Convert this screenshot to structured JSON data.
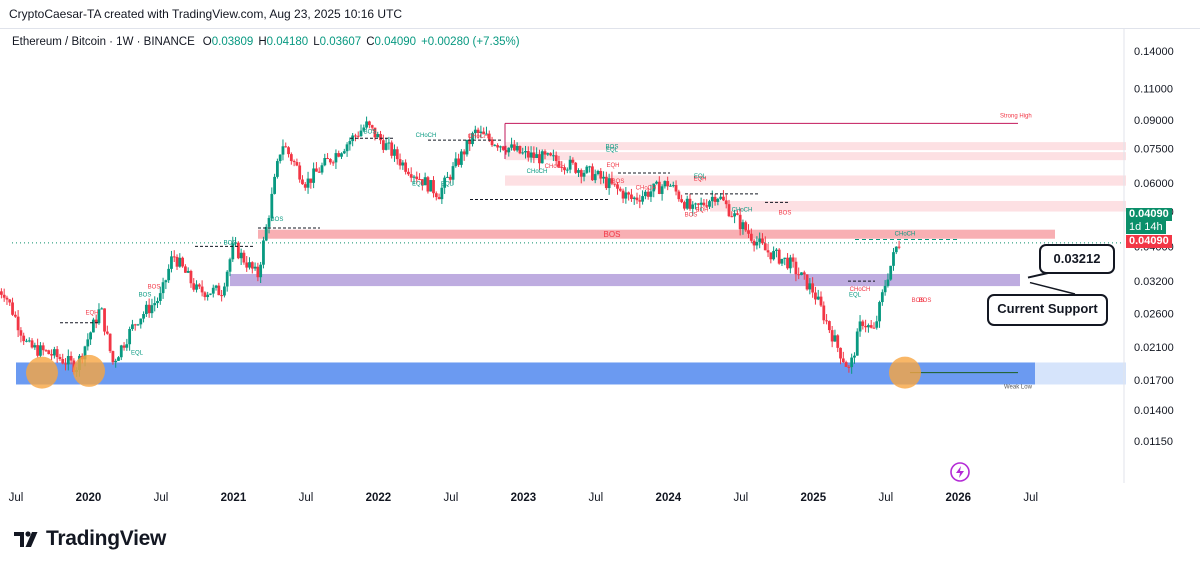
{
  "header": {
    "attribution": "CryptoCaesar-TA created with TradingView.com, Aug 23, 2025 10:16 UTC"
  },
  "legend": {
    "symbol": "Ethereum / Bitcoin · 1W · BINANCE",
    "o_label": "O",
    "o_value": "0.03809",
    "h_label": "H",
    "h_value": "0.04180",
    "l_label": "L",
    "l_value": "0.03607",
    "c_label": "C",
    "c_value": "0.04090",
    "change": "+0.00280 (+7.35%)"
  },
  "price_axis": {
    "scale": "log",
    "ticks": [
      "0.14000",
      "0.11000",
      "0.09000",
      "0.07500",
      "0.06000",
      "0.05000",
      "0.04000",
      "0.03200",
      "0.02600",
      "0.02100",
      "0.01700",
      "0.01400",
      "0.01150"
    ],
    "last_price": "0.04090",
    "countdown": "1d 14h",
    "last_price_2": "0.04090"
  },
  "time_axis": {
    "ticks": [
      "Jul",
      "2020",
      "Jul",
      "2021",
      "Jul",
      "2022",
      "Jul",
      "2023",
      "Jul",
      "2024",
      "Jul",
      "2025",
      "Jul",
      "2026",
      "Jul"
    ]
  },
  "annotations": {
    "callout_price": "0.03212",
    "callout_support": "Current Support",
    "strong_high": "Strong High",
    "weak_low": "Weak Low",
    "bos_center": "BOS",
    "choch_recent": "CHoCH",
    "labels": [
      {
        "text": "BOS",
        "color": "#089981"
      },
      {
        "text": "BOS",
        "color": "#089981"
      },
      {
        "text": "BOS",
        "color": "#089981"
      },
      {
        "text": "CHoCH",
        "color": "#089981"
      },
      {
        "text": "CHoCH",
        "color": "#f23645"
      },
      {
        "text": "EQL",
        "color": "#089981"
      },
      {
        "text": "EQL",
        "color": "#089981"
      },
      {
        "text": "EQH",
        "color": "#f23645"
      },
      {
        "text": "BOS",
        "color": "#089981"
      },
      {
        "text": "BOS",
        "color": "#f23645"
      },
      {
        "text": "EQL",
        "color": "#089981"
      },
      {
        "text": "BOS",
        "color": "#089981"
      },
      {
        "text": "CHoCH",
        "color": "#f23645"
      },
      {
        "text": "CHoCH",
        "color": "#089981"
      },
      {
        "text": "BOS",
        "color": "#f23645"
      },
      {
        "text": "EQL",
        "color": "#089981"
      },
      {
        "text": "CHoCH",
        "color": "#f23645"
      },
      {
        "text": "EQH",
        "color": "#f23645"
      },
      {
        "text": "BOS",
        "color": "#f23645"
      },
      {
        "text": "EQH",
        "color": "#f23645"
      },
      {
        "text": "EQL",
        "color": "#089981"
      },
      {
        "text": "CHoCH",
        "color": "#089981"
      },
      {
        "text": "BOS",
        "color": "#f23645"
      },
      {
        "text": "EQL",
        "color": "#089981"
      },
      {
        "text": "CHoCH",
        "color": "#f23645"
      },
      {
        "text": "BOS",
        "color": "#f23645"
      },
      {
        "text": "BOS",
        "color": "#f23645"
      },
      {
        "text": "EQH",
        "color": "#f23645"
      }
    ]
  },
  "brand": {
    "logo_text": "TradingView"
  },
  "colors": {
    "up": "#089981",
    "down": "#f23645",
    "blue_zone": "#5b8ff0",
    "purple_zone": "#b39ddb",
    "red_zone": "#f7a1a6",
    "orange_marker": "#f7a541",
    "last_price_badge": "#0b8f6a",
    "last_price_badge_red": "#f23645"
  },
  "chart_data": {
    "type": "candlestick",
    "title": "Ethereum / Bitcoin · 1W · BINANCE",
    "scale": "log",
    "ylim": [
      0.0105,
      0.155
    ],
    "x_ticks": [
      "Jul",
      "2020",
      "Jul",
      "2021",
      "Jul",
      "2022",
      "Jul",
      "2023",
      "Jul",
      "2024",
      "Jul",
      "2025",
      "Jul",
      "2026",
      "Jul"
    ],
    "close_path": [
      {
        "date": "2019-06",
        "close": 0.03
      },
      {
        "date": "2019-08",
        "close": 0.021
      },
      {
        "date": "2019-10",
        "close": 0.02
      },
      {
        "date": "2019-12",
        "close": 0.0185
      },
      {
        "date": "2020-02",
        "close": 0.027
      },
      {
        "date": "2020-03",
        "close": 0.019
      },
      {
        "date": "2020-05",
        "close": 0.025
      },
      {
        "date": "2020-07",
        "close": 0.029
      },
      {
        "date": "2020-08",
        "close": 0.038
      },
      {
        "date": "2020-10",
        "close": 0.03
      },
      {
        "date": "2020-12",
        "close": 0.03
      },
      {
        "date": "2021-01",
        "close": 0.04
      },
      {
        "date": "2021-03",
        "close": 0.033
      },
      {
        "date": "2021-05",
        "close": 0.078
      },
      {
        "date": "2021-07",
        "close": 0.06
      },
      {
        "date": "2021-09",
        "close": 0.07
      },
      {
        "date": "2021-12",
        "close": 0.087
      },
      {
        "date": "2022-03",
        "close": 0.068
      },
      {
        "date": "2022-06",
        "close": 0.056
      },
      {
        "date": "2022-09",
        "close": 0.083
      },
      {
        "date": "2023-01",
        "close": 0.072
      },
      {
        "date": "2023-04",
        "close": 0.069
      },
      {
        "date": "2023-07",
        "close": 0.063
      },
      {
        "date": "2023-10",
        "close": 0.054
      },
      {
        "date": "2024-01",
        "close": 0.06
      },
      {
        "date": "2024-03",
        "close": 0.05
      },
      {
        "date": "2024-05",
        "close": 0.056
      },
      {
        "date": "2024-07",
        "close": 0.046
      },
      {
        "date": "2024-09",
        "close": 0.039
      },
      {
        "date": "2024-11",
        "close": 0.036
      },
      {
        "date": "2025-01",
        "close": 0.03
      },
      {
        "date": "2025-03",
        "close": 0.021
      },
      {
        "date": "2025-04",
        "close": 0.018
      },
      {
        "date": "2025-05",
        "close": 0.025
      },
      {
        "date": "2025-06",
        "close": 0.023
      },
      {
        "date": "2025-07",
        "close": 0.032
      },
      {
        "date": "2025-08",
        "close": 0.0409
      }
    ],
    "zones": [
      {
        "name": "demand",
        "low": 0.0165,
        "high": 0.019,
        "color": "#5b8ff0"
      },
      {
        "name": "support",
        "low": 0.031,
        "high": 0.0335,
        "color": "#b39ddb"
      },
      {
        "name": "resistance",
        "low": 0.042,
        "high": 0.0445,
        "color": "#f7a1a6"
      },
      {
        "name": "supply-1",
        "low": 0.0695,
        "high": 0.078,
        "color": "#fddde0"
      },
      {
        "name": "supply-2",
        "low": 0.059,
        "high": 0.063,
        "color": "#fddde0"
      },
      {
        "name": "supply-3",
        "low": 0.05,
        "high": 0.0535,
        "color": "#fddde0"
      }
    ],
    "levels": {
      "strong_high": 0.088,
      "weak_low": 0.0178,
      "current_support": 0.03212,
      "last": 0.0409
    }
  }
}
